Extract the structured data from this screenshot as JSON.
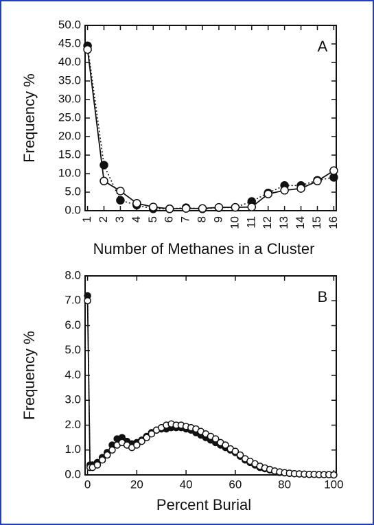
{
  "chart_data": [
    {
      "type": "line",
      "panel_label": "A",
      "x_label": "Number of Methanes in a Cluster",
      "y_label": "Frequency %",
      "x": [
        1,
        2,
        3,
        4,
        5,
        6,
        7,
        8,
        9,
        10,
        11,
        12,
        13,
        14,
        15,
        16
      ],
      "xlim": [
        0.85,
        16.15
      ],
      "xticks": [
        1,
        2,
        3,
        4,
        5,
        6,
        7,
        8,
        9,
        10,
        11,
        12,
        13,
        14,
        15,
        16
      ],
      "ylim": [
        0,
        50
      ],
      "yticks": [
        {
          "value": 0,
          "label": "0.0"
        },
        {
          "value": 5,
          "label": "5.0"
        },
        {
          "value": 10,
          "label": "10.0"
        },
        {
          "value": 15,
          "label": "15.0"
        },
        {
          "value": 20,
          "label": "20.0"
        },
        {
          "value": 25,
          "label": "25.0"
        },
        {
          "value": 30,
          "label": "30.0"
        },
        {
          "value": 35,
          "label": "35.0"
        },
        {
          "value": 40,
          "label": "40.0"
        },
        {
          "value": 45,
          "label": "45.0"
        },
        {
          "value": 50,
          "label": "50.0"
        }
      ],
      "series": [
        {
          "color": "#111111",
          "marker": "open",
          "line_style": "solid",
          "values": [
            43.5,
            8.0,
            5.3,
            2.0,
            1.0,
            0.5,
            0.6,
            0.6,
            0.9,
            0.9,
            1.0,
            4.5,
            5.5,
            6.0,
            8.0,
            10.8
          ]
        },
        {
          "color": "#111111",
          "marker": "filled",
          "line_style": "dotted",
          "values": [
            44.5,
            12.3,
            2.8,
            1.5,
            0.5,
            0.5,
            0.8,
            0.5,
            0.8,
            0.9,
            2.5,
            4.8,
            6.8,
            6.8,
            8.2,
            9.0
          ]
        }
      ]
    },
    {
      "type": "line",
      "panel_label": "B",
      "x_label": "Percent Burial",
      "y_label": "Frequency %",
      "x": [
        0,
        1,
        2,
        4,
        6,
        8,
        10,
        12,
        14,
        16,
        18,
        20,
        22,
        24,
        26,
        28,
        30,
        32,
        34,
        36,
        38,
        40,
        42,
        44,
        46,
        48,
        50,
        52,
        54,
        56,
        58,
        60,
        62,
        64,
        66,
        68,
        70,
        72,
        74,
        76,
        78,
        80,
        82,
        84,
        86,
        88,
        90,
        92,
        94,
        96,
        98,
        100
      ],
      "xlim": [
        -1,
        101
      ],
      "xticks": [
        0,
        20,
        40,
        60,
        80,
        100
      ],
      "ylim": [
        0,
        8
      ],
      "yticks": [
        {
          "value": 0,
          "label": "0.0"
        },
        {
          "value": 1,
          "label": "1.0"
        },
        {
          "value": 2,
          "label": "2.0"
        },
        {
          "value": 3,
          "label": "3.0"
        },
        {
          "value": 4,
          "label": "4.0"
        },
        {
          "value": 5,
          "label": "5.0"
        },
        {
          "value": 6,
          "label": "6.0"
        },
        {
          "value": 7,
          "label": "7.0"
        },
        {
          "value": 8,
          "label": "8.0"
        }
      ],
      "series": [
        {
          "color": "#111111",
          "marker": "open",
          "line_style": "solid",
          "values": [
            7.0,
            0.3,
            0.3,
            0.4,
            0.6,
            0.8,
            1.0,
            1.2,
            1.3,
            1.2,
            1.1,
            1.2,
            1.35,
            1.5,
            1.65,
            1.8,
            1.9,
            2.0,
            2.05,
            2.0,
            2.0,
            1.95,
            1.9,
            1.85,
            1.75,
            1.65,
            1.55,
            1.45,
            1.3,
            1.2,
            1.05,
            0.95,
            0.8,
            0.65,
            0.55,
            0.45,
            0.35,
            0.28,
            0.22,
            0.16,
            0.12,
            0.09,
            0.07,
            0.05,
            0.04,
            0.03,
            0.02,
            0.02,
            0.01,
            0.01,
            0.01,
            0.0
          ]
        },
        {
          "color": "#111111",
          "marker": "filled",
          "line_style": "dotted",
          "values": [
            7.2,
            0.4,
            0.4,
            0.5,
            0.7,
            0.9,
            1.2,
            1.45,
            1.5,
            1.35,
            1.25,
            1.3,
            1.4,
            1.55,
            1.7,
            1.8,
            1.85,
            1.85,
            1.9,
            1.9,
            1.9,
            1.85,
            1.8,
            1.7,
            1.6,
            1.5,
            1.4,
            1.3,
            1.2,
            1.1,
            1.0,
            0.9,
            0.75,
            0.6,
            0.5,
            0.4,
            0.3,
            0.25,
            0.2,
            0.15,
            0.1,
            0.08,
            0.06,
            0.05,
            0.04,
            0.03,
            0.02,
            0.02,
            0.01,
            0.01,
            0.01,
            0.0
          ]
        }
      ]
    }
  ]
}
